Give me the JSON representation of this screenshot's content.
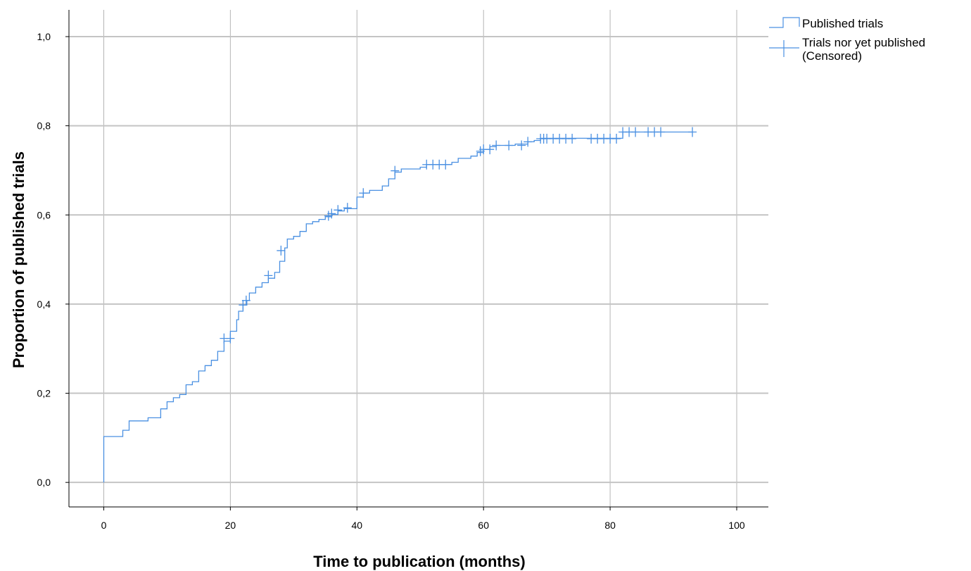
{
  "chart_data": {
    "type": "line",
    "xlabel": "Time to publication (months)",
    "ylabel": "Proportion of published trials",
    "xlim": [
      -5.5,
      105
    ],
    "ylim": [
      -0.055,
      1.06
    ],
    "x_ticks": [
      0,
      20,
      40,
      60,
      80,
      100
    ],
    "y_ticks": [
      0.0,
      0.2,
      0.4,
      0.6,
      0.8,
      1.0
    ],
    "x_tick_labels": [
      "0",
      "20",
      "40",
      "60",
      "80",
      "100"
    ],
    "y_tick_labels": [
      "0,0",
      "0,2",
      "0,4",
      "0,6",
      "0,8",
      "1,0"
    ],
    "grid": true,
    "legend_position": "top-right",
    "series": [
      {
        "name": "Published trials",
        "style": "step",
        "color": "#4a90e2",
        "x": [
          0,
          0,
          3,
          4,
          7,
          9,
          10,
          11,
          12,
          13,
          14,
          15,
          16,
          17,
          18,
          19,
          20,
          21,
          21.3,
          22,
          22.6,
          23,
          24,
          25,
          26,
          27,
          27.8,
          28.6,
          29,
          30,
          31,
          32,
          33,
          34,
          35,
          36,
          37,
          38,
          40,
          41,
          42,
          44,
          45,
          46,
          47,
          50,
          51,
          55,
          56,
          58,
          59,
          60,
          61,
          62,
          65,
          67,
          68,
          69,
          82,
          93
        ],
        "y": [
          0.0,
          0.103,
          0.117,
          0.138,
          0.145,
          0.165,
          0.181,
          0.19,
          0.197,
          0.219,
          0.226,
          0.25,
          0.262,
          0.274,
          0.294,
          0.317,
          0.339,
          0.365,
          0.384,
          0.398,
          0.408,
          0.425,
          0.438,
          0.448,
          0.458,
          0.471,
          0.496,
          0.526,
          0.546,
          0.552,
          0.563,
          0.58,
          0.585,
          0.59,
          0.596,
          0.601,
          0.609,
          0.614,
          0.64,
          0.649,
          0.655,
          0.665,
          0.681,
          0.696,
          0.703,
          0.707,
          0.713,
          0.718,
          0.727,
          0.732,
          0.74,
          0.747,
          0.753,
          0.756,
          0.759,
          0.764,
          0.767,
          0.772,
          0.786,
          0.786
        ]
      },
      {
        "name": "Trials nor yet published (Censored)",
        "style": "marker",
        "marker": "+",
        "color": "#4a90e2",
        "x": [
          19,
          20,
          22,
          22.5,
          26,
          28,
          35.5,
          36,
          37,
          38.5,
          41,
          46,
          51,
          52,
          53,
          54,
          59.5,
          60,
          61,
          62,
          64,
          66,
          67,
          69,
          69.5,
          70,
          71,
          72,
          73,
          74,
          77,
          78,
          79,
          80,
          81,
          82,
          83,
          84,
          86,
          87,
          88,
          93
        ],
        "y": [
          0.323,
          0.323,
          0.398,
          0.408,
          0.464,
          0.52,
          0.598,
          0.603,
          0.611,
          0.616,
          0.649,
          0.699,
          0.713,
          0.713,
          0.713,
          0.713,
          0.743,
          0.747,
          0.747,
          0.756,
          0.756,
          0.756,
          0.764,
          0.771,
          0.771,
          0.771,
          0.771,
          0.771,
          0.771,
          0.771,
          0.771,
          0.771,
          0.771,
          0.771,
          0.771,
          0.786,
          0.786,
          0.786,
          0.786,
          0.786,
          0.786,
          0.786
        ]
      }
    ]
  },
  "legend": {
    "item_1_label": "Published trials",
    "item_2_label_line1": "Trials nor yet published",
    "item_2_label_line2": "(Censored)"
  }
}
